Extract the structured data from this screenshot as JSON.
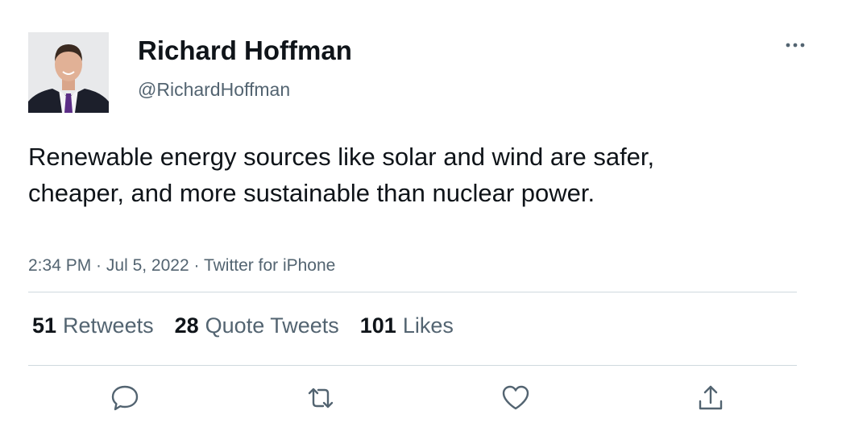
{
  "user": {
    "name": "Richard Hoffman",
    "handle": "@RichardHoffman"
  },
  "tweet": {
    "text": "Renewable energy sources like solar and wind are safer, cheaper, and more sustainable than nuclear power.",
    "time": "2:34 PM",
    "date": "Jul 5, 2022",
    "source": "Twitter for iPhone",
    "separator": " · "
  },
  "stats": [
    {
      "count": "51",
      "label": "Retweets"
    },
    {
      "count": "28",
      "label": "Quote Tweets"
    },
    {
      "count": "101",
      "label": "Likes"
    }
  ],
  "actions": [
    {
      "icon": "reply-icon"
    },
    {
      "icon": "retweet-icon"
    },
    {
      "icon": "like-icon"
    },
    {
      "icon": "share-icon"
    }
  ],
  "colors": {
    "text_primary": "#0f1419",
    "text_secondary": "#536471",
    "divider": "#cfd9de"
  }
}
